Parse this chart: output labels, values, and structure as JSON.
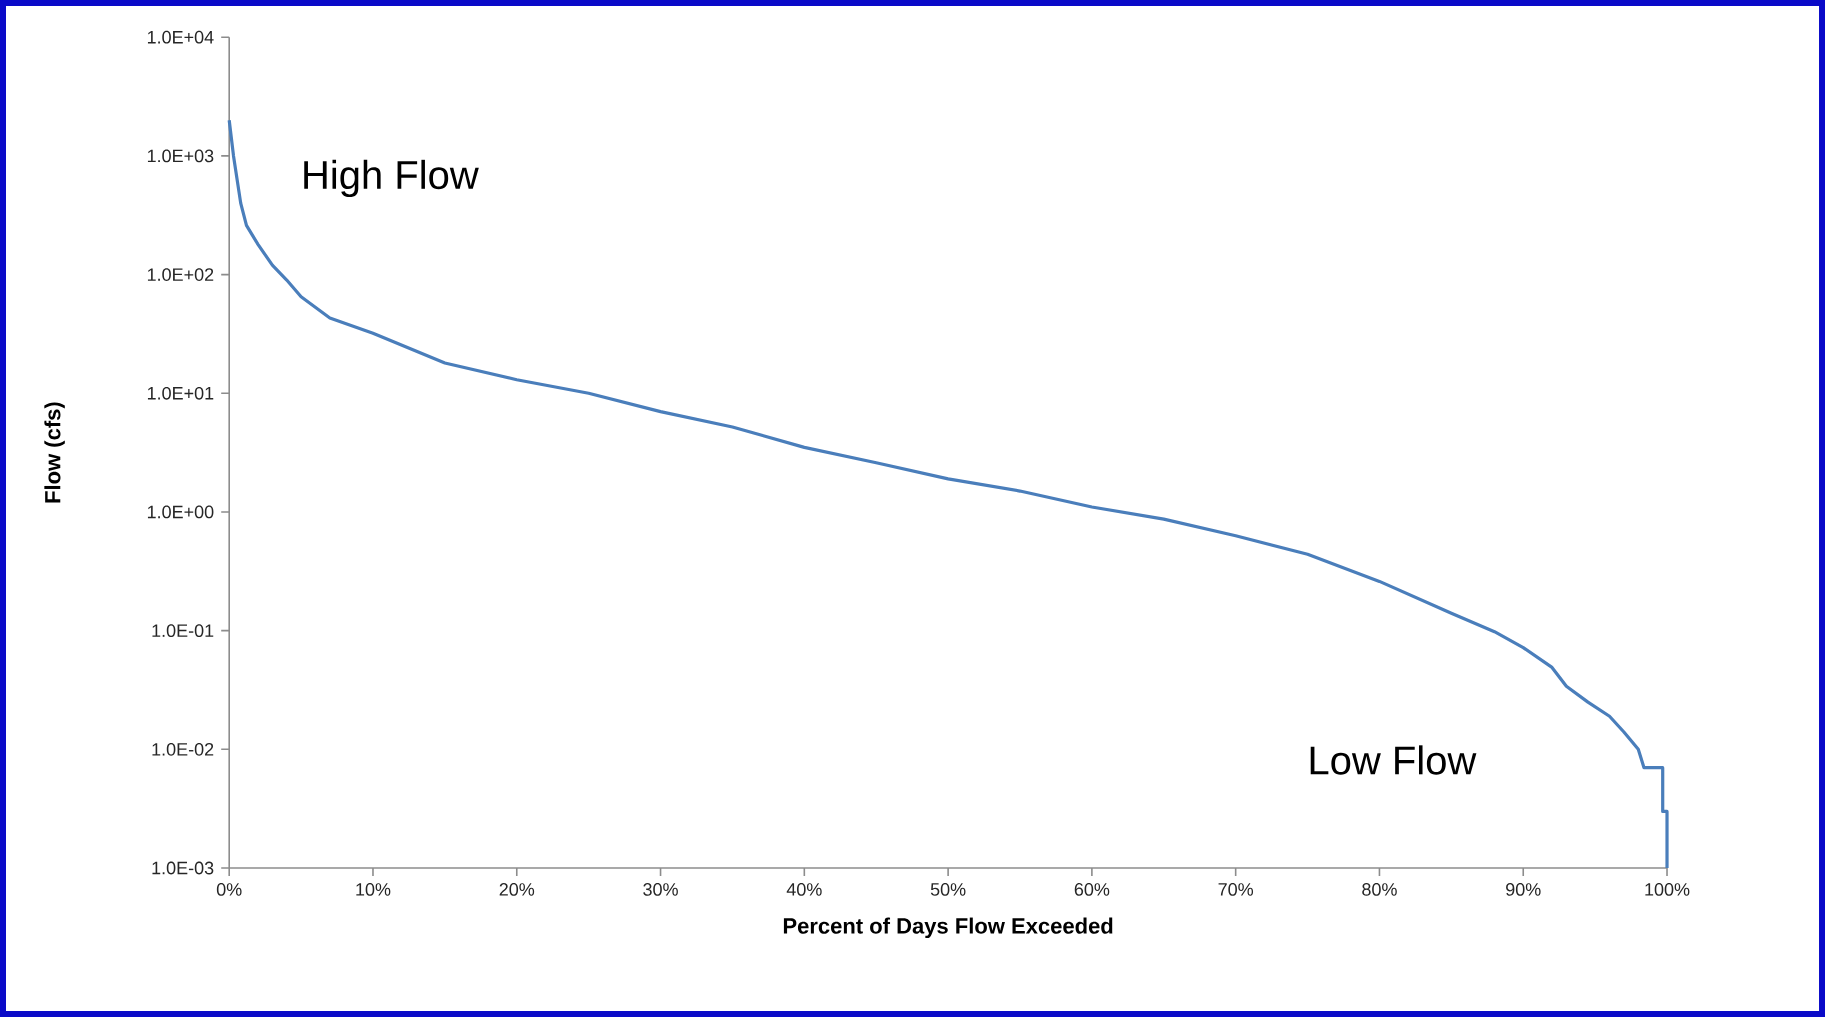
{
  "chart_data": {
    "type": "line",
    "xlabel": "Percent of Days Flow Exceeded",
    "ylabel": "Flow (cfs)",
    "annotations": [
      "High Flow",
      "Low Flow"
    ],
    "log": "y",
    "grid": false,
    "marker": "none",
    "line_style": "solid",
    "xlim": [
      0,
      100
    ],
    "ylim": [
      0.001,
      10000
    ],
    "xticks": [
      {
        "value": 0,
        "label": "0%"
      },
      {
        "value": 10,
        "label": "10%"
      },
      {
        "value": 20,
        "label": "20%"
      },
      {
        "value": 30,
        "label": "30%"
      },
      {
        "value": 40,
        "label": "40%"
      },
      {
        "value": 50,
        "label": "50%"
      },
      {
        "value": 60,
        "label": "60%"
      },
      {
        "value": 70,
        "label": "70%"
      },
      {
        "value": 80,
        "label": "80%"
      },
      {
        "value": 90,
        "label": "90%"
      },
      {
        "value": 100,
        "label": "100%"
      }
    ],
    "yticks": [
      {
        "value": 0.001,
        "label": "1.0E-03"
      },
      {
        "value": 0.01,
        "label": "1.0E-02"
      },
      {
        "value": 0.1,
        "label": "1.0E-01"
      },
      {
        "value": 1,
        "label": "1.0E+00"
      },
      {
        "value": 10,
        "label": "1.0E+01"
      },
      {
        "value": 100,
        "label": "1.0E+02"
      },
      {
        "value": 1000,
        "label": "1.0E+03"
      },
      {
        "value": 10000,
        "label": "1.0E+04"
      }
    ],
    "series": [
      {
        "color": "#4a7ebb",
        "x": [
          0,
          0.3,
          0.8,
          1.2,
          2,
          3,
          4,
          5,
          7,
          10,
          15,
          20,
          25,
          30,
          35,
          40,
          45,
          50,
          55,
          60,
          65,
          70,
          75,
          80,
          85,
          88,
          90,
          92,
          93,
          94.5,
          96,
          97,
          98,
          98.4,
          99.7,
          99.7,
          100,
          100
        ],
        "values": [
          2000,
          1000,
          400,
          260,
          180,
          120,
          90,
          65,
          43,
          32,
          18,
          13,
          10,
          7,
          5.2,
          3.5,
          2.6,
          1.9,
          1.5,
          1.1,
          0.87,
          0.63,
          0.44,
          0.26,
          0.14,
          0.098,
          0.072,
          0.049,
          0.034,
          0.025,
          0.019,
          0.014,
          0.01,
          0.007,
          0.007,
          0.003,
          0.003,
          0.001
        ]
      }
    ]
  }
}
